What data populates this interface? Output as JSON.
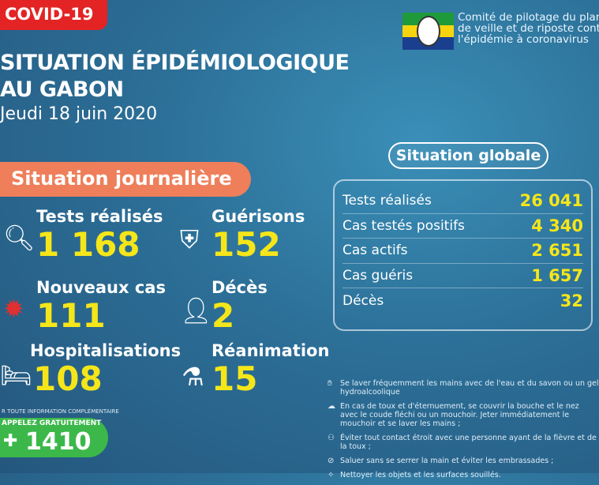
{
  "header": {
    "badge": "COVID-19",
    "title_line1": "SITUATION ÉPIDÉMIOLOGIQUE",
    "title_line2": "AU GABON",
    "date": "Jeudi 18 juin 2020"
  },
  "org": {
    "line1": "Comité de pilotage du plan",
    "line2": "de veille et de riposte contre",
    "line3": "l'épidémie à coronavirus",
    "flag_colors": [
      "#1f9a3a",
      "#f7d40e",
      "#1a3f8f"
    ]
  },
  "daily": {
    "title": "Situation journalière",
    "items": [
      {
        "label": "Tests réalisés",
        "value": "1 168",
        "icon": "magnifier-icon"
      },
      {
        "label": "Guérisons",
        "value": "152",
        "icon": "shield-cross-icon"
      },
      {
        "label": "Nouveaux cas",
        "value": "111",
        "icon": "virus-icon"
      },
      {
        "label": "Décès",
        "value": "2",
        "icon": "person-icon"
      },
      {
        "label": "Hospitalisations",
        "value": "108",
        "icon": "hospital-bed-icon"
      },
      {
        "label": "Réanimation",
        "value": "15",
        "icon": "oxygen-tank-icon"
      }
    ]
  },
  "global": {
    "title": "Situation globale",
    "rows": [
      {
        "label": "Tests réalisés",
        "value": "26 041"
      },
      {
        "label": "Cas testés positifs",
        "value": "4 340"
      },
      {
        "label": "Cas actifs",
        "value": "2 651"
      },
      {
        "label": "Cas guéris",
        "value": "1 657"
      },
      {
        "label": "Décès",
        "value": "32"
      }
    ]
  },
  "advice": [
    "Se laver fréquemment les mains avec de l'eau et du savon ou un gel hydroalcoolique",
    "En cas de toux et d'éternuement, se couvrir la bouche et le nez avec le coude fléchi ou un mouchoir. Jeter immédiatement le mouchoir et se laver les mains ;",
    "Éviter tout contact étroit avec une personne ayant de la fièvre et de la toux ;",
    "Saluer sans se serrer la main et éviter les embrassades ;",
    "Nettoyer les objets et les surfaces souillés."
  ],
  "hotline": {
    "info": "R TOUTE INFORMATION COMPLÉMENTAIRE",
    "label": "APPELEZ GRATUITEMENT",
    "number": "1410"
  },
  "colors": {
    "numbers": "#f5e61a",
    "badge": "#e42424",
    "daily_banner": "#ee7f5a",
    "hotline": "#3cb84a"
  }
}
